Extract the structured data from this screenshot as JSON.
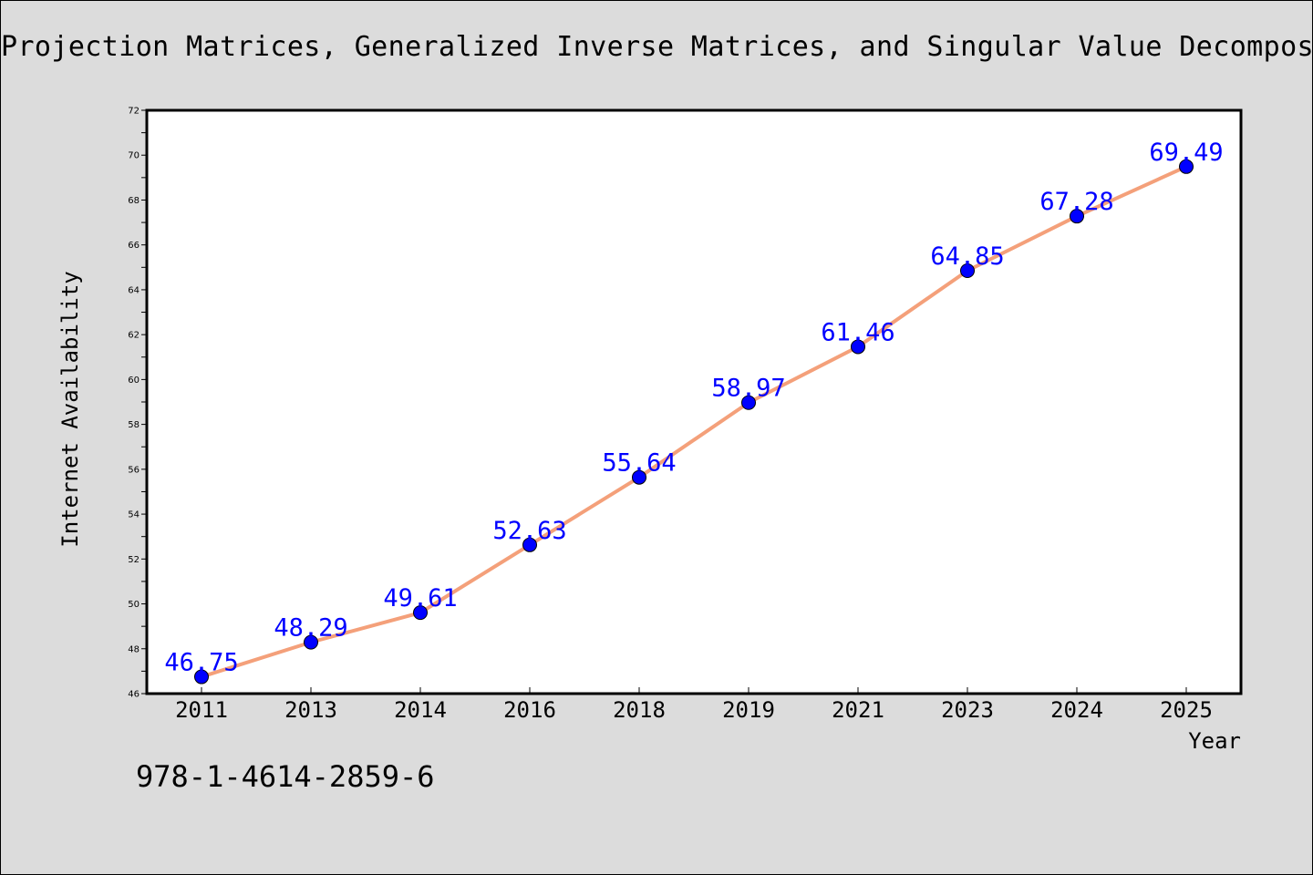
{
  "title": "Projection Matrices, Generalized Inverse Matrices, and Singular Value Decomposition",
  "footer": "978-1-4614-2859-6",
  "colors": {
    "background": "#dcdcdc",
    "plot_background": "#ffffff",
    "line": "#f4a07a",
    "marker": "#0000ff",
    "data_label": "#0000ff"
  },
  "chart_data": {
    "type": "line",
    "xlabel": "Year",
    "ylabel": "Internet Availability",
    "categories": [
      "2011",
      "2013",
      "2014",
      "2016",
      "2018",
      "2019",
      "2021",
      "2023",
      "2024",
      "2025"
    ],
    "series": [
      {
        "values": [
          46.75,
          48.29,
          49.61,
          52.63,
          55.64,
          58.97,
          61.46,
          64.85,
          67.28,
          69.49
        ]
      }
    ],
    "ylim": [
      46,
      72
    ],
    "yticks": [
      46,
      48,
      50,
      52,
      54,
      56,
      58,
      60,
      62,
      64,
      66,
      68,
      70,
      72
    ],
    "data_labels": [
      "46.75",
      "48.29",
      "49.61",
      "52.63",
      "55.64",
      "58.97",
      "61.46",
      "64.85",
      "67.28",
      "69.49"
    ],
    "grid": false,
    "legend": "none"
  }
}
